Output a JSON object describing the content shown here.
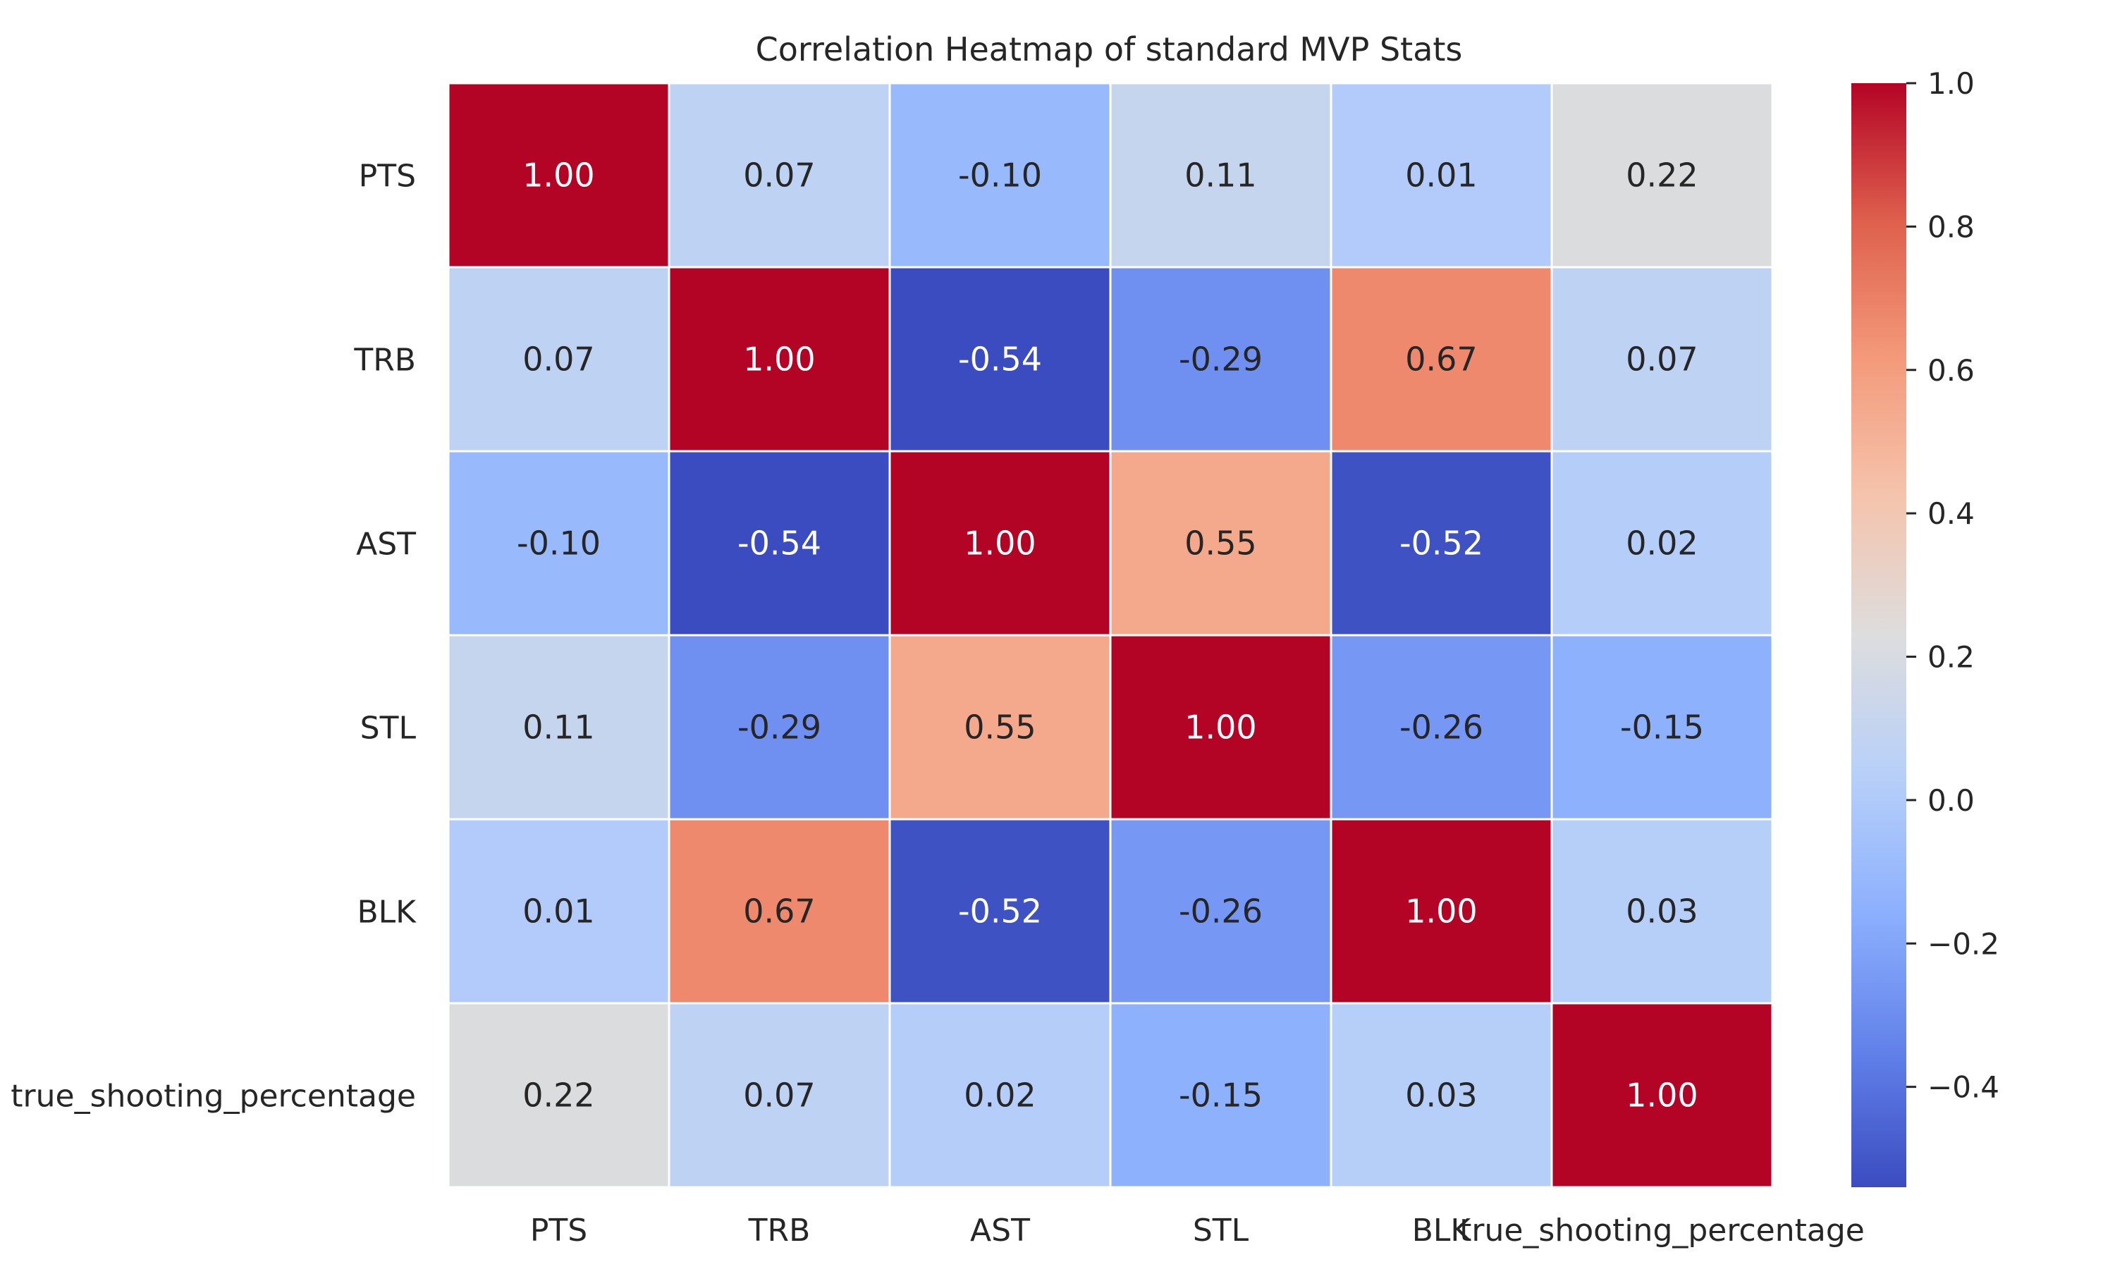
{
  "chart_data": {
    "type": "heatmap",
    "title": "Correlation Heatmap of standard MVP Stats",
    "rows": [
      "PTS",
      "TRB",
      "AST",
      "STL",
      "BLK",
      "true_shooting_percentage"
    ],
    "columns": [
      "PTS",
      "TRB",
      "AST",
      "STL",
      "BLK",
      "true_shooting_percentage"
    ],
    "values": [
      [
        1.0,
        0.07,
        -0.1,
        0.11,
        0.01,
        0.22
      ],
      [
        0.07,
        1.0,
        -0.54,
        -0.29,
        0.67,
        0.07
      ],
      [
        -0.1,
        -0.54,
        1.0,
        0.55,
        -0.52,
        0.02
      ],
      [
        0.11,
        -0.29,
        0.55,
        1.0,
        -0.26,
        -0.15
      ],
      [
        0.01,
        0.67,
        -0.52,
        -0.26,
        1.0,
        0.03
      ],
      [
        0.22,
        0.07,
        0.02,
        -0.15,
        0.03,
        1.0
      ]
    ],
    "value_format": "0.00",
    "colormap": "coolwarm",
    "colorbar": {
      "range": [
        -0.54,
        1.0
      ],
      "ticks": [
        1.0,
        0.8,
        0.6,
        0.4,
        0.2,
        0.0,
        -0.2,
        -0.4
      ],
      "tick_labels": [
        "1.0",
        "0.8",
        "0.6",
        "0.4",
        "0.2",
        "0.0",
        "−0.2",
        "−0.4"
      ]
    },
    "grid_line_color": "#ffffff",
    "text_colors": {
      "dark": "#262626",
      "light": "#ffffff"
    }
  }
}
